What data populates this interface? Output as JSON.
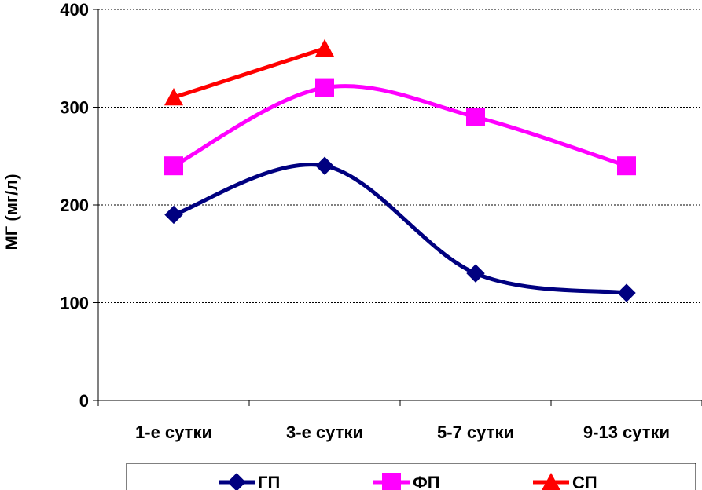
{
  "chart_data": {
    "type": "line",
    "title": "",
    "xlabel": "",
    "ylabel": "МГ (мг/л)",
    "categories": [
      "1-е сутки",
      "3-е сутки",
      "5-7 сутки",
      "9-13 сутки"
    ],
    "ylim": [
      0,
      400
    ],
    "yticks": [
      0,
      100,
      200,
      300,
      400
    ],
    "grid": true,
    "smooth": true,
    "legend_position": "bottom",
    "series": [
      {
        "name": "ГП",
        "values": [
          190,
          240,
          130,
          110
        ],
        "color": "#000080",
        "marker": "diamond"
      },
      {
        "name": "ФП",
        "values": [
          240,
          320,
          290,
          240
        ],
        "color": "#ff00ff",
        "marker": "square"
      },
      {
        "name": "СП",
        "values": [
          310,
          360,
          null,
          null
        ],
        "color": "#ff0000",
        "marker": "triangle"
      }
    ]
  }
}
